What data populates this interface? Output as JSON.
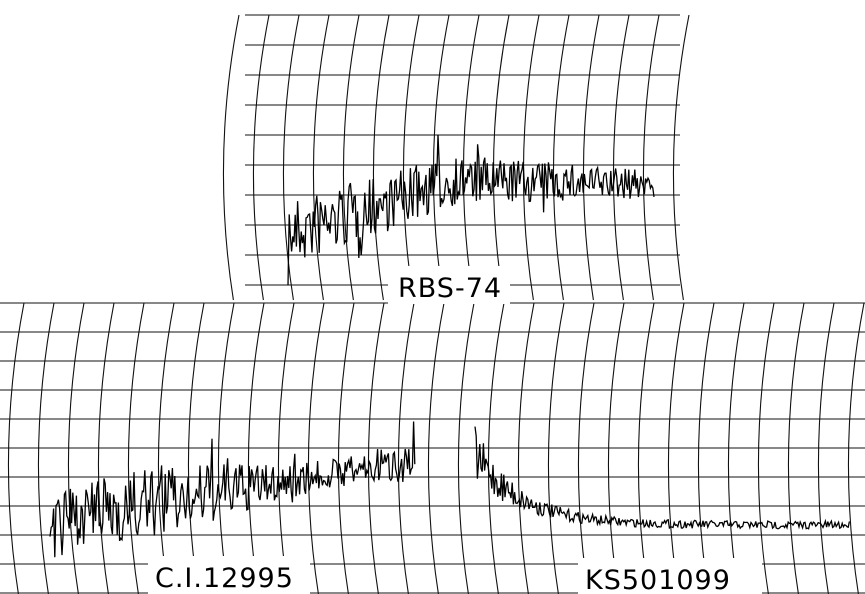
{
  "panels": [
    {
      "label": "RBS-74"
    },
    {
      "label": "C.I.12995"
    },
    {
      "label": "KS501099"
    }
  ]
}
